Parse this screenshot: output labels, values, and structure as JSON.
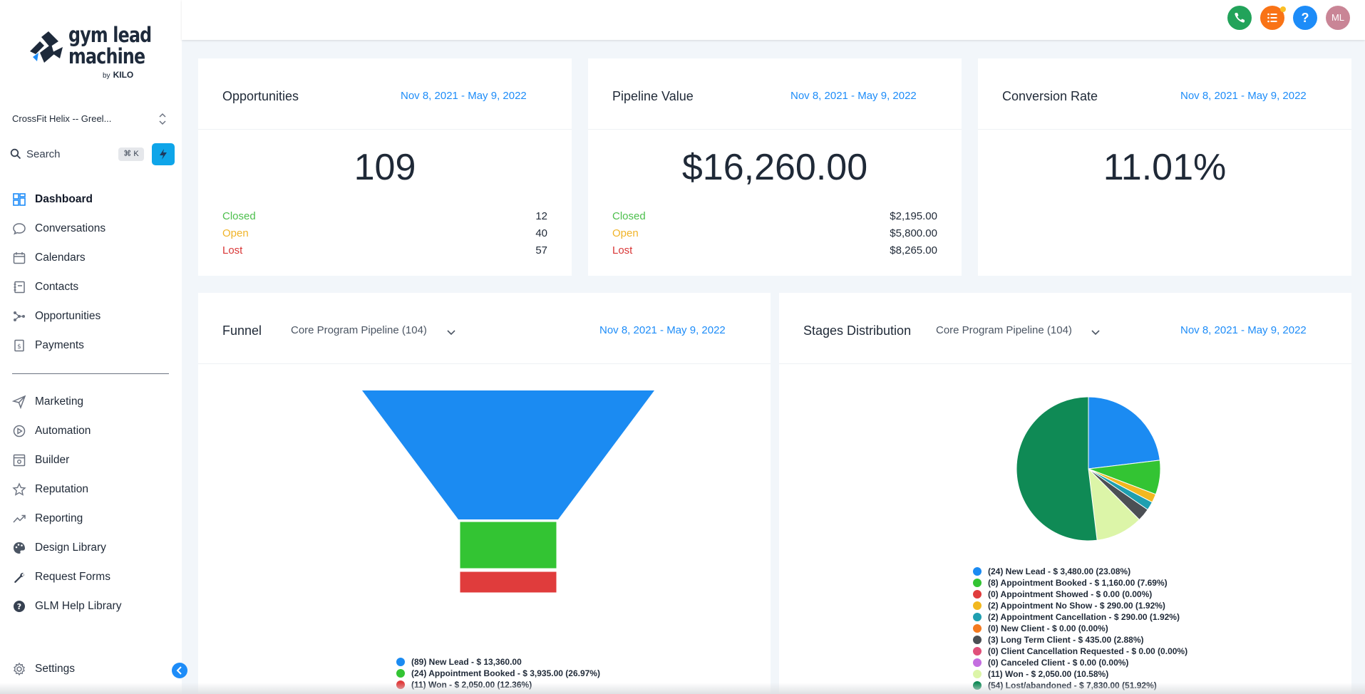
{
  "logo": {
    "line1": "gym lead",
    "line2": "machine",
    "by": "by",
    "brand": "KILO"
  },
  "location": "CrossFit Helix -- Greel...",
  "search": {
    "label": "Search",
    "shortcut": "⌘ K"
  },
  "nav": {
    "items": [
      {
        "label": "Dashboard",
        "icon": "dashboard-icon",
        "active": true
      },
      {
        "label": "Conversations",
        "icon": "chat-icon"
      },
      {
        "label": "Calendars",
        "icon": "calendar-icon"
      },
      {
        "label": "Contacts",
        "icon": "contacts-icon"
      },
      {
        "label": "Opportunities",
        "icon": "opportunities-icon"
      },
      {
        "label": "Payments",
        "icon": "payments-icon"
      }
    ],
    "items2": [
      {
        "label": "Marketing",
        "icon": "send-icon"
      },
      {
        "label": "Automation",
        "icon": "automation-icon"
      },
      {
        "label": "Builder",
        "icon": "builder-icon"
      },
      {
        "label": "Reputation",
        "icon": "star-icon"
      },
      {
        "label": "Reporting",
        "icon": "trend-icon"
      },
      {
        "label": "Design Library",
        "icon": "palette-icon"
      },
      {
        "label": "Request Forms",
        "icon": "wrench-icon"
      },
      {
        "label": "GLM Help Library",
        "icon": "help-circle-icon"
      }
    ],
    "settings": "Settings"
  },
  "topbar": {
    "help": "?",
    "avatar": "ML"
  },
  "date_range": "Nov 8, 2021 - May 9, 2022",
  "opportunities": {
    "title": "Opportunities",
    "value": "109",
    "rows": [
      {
        "label": "Closed",
        "value": "12",
        "color": "#4cbf4c"
      },
      {
        "label": "Open",
        "value": "40",
        "color": "#f0b429"
      },
      {
        "label": "Lost",
        "value": "57",
        "color": "#d93636"
      }
    ]
  },
  "pipeline": {
    "title": "Pipeline Value",
    "value": "$16,260.00",
    "rows": [
      {
        "label": "Closed",
        "value": "$2,195.00",
        "color": "#4cbf4c"
      },
      {
        "label": "Open",
        "value": "$5,800.00",
        "color": "#f0b429"
      },
      {
        "label": "Lost",
        "value": "$8,265.00",
        "color": "#d93636"
      }
    ]
  },
  "conversion": {
    "title": "Conversion Rate",
    "value": "11.01%"
  },
  "funnel": {
    "title": "Funnel",
    "pipeline": "Core Program Pipeline (104)",
    "legend": [
      {
        "text": "(89) New Lead - $ 13,360.00",
        "color": "#1b8bf2"
      },
      {
        "text": "(24) Appointment Booked - $ 3,935.00 (26.97%)",
        "color": "#33c433"
      },
      {
        "text": "(11) Won - $ 2,050.00 (12.36%)",
        "color": "#e03c3c"
      }
    ]
  },
  "stages": {
    "title": "Stages Distribution",
    "pipeline": "Core Program Pipeline (104)",
    "legend": [
      {
        "text": "(24) New Lead - $ 3,480.00 (23.08%)",
        "color": "#1b8bf2"
      },
      {
        "text": "(8) Appointment Booked - $ 1,160.00 (7.69%)",
        "color": "#33c433"
      },
      {
        "text": "(0) Appointment Showed - $ 0.00 (0.00%)",
        "color": "#e03c3c"
      },
      {
        "text": "(2) Appointment No Show - $ 290.00 (1.92%)",
        "color": "#f2b81f"
      },
      {
        "text": "(2) Appointment Cancellation - $ 290.00 (1.92%)",
        "color": "#1f9fb0"
      },
      {
        "text": "(0) New Client - $ 0.00 (0.00%)",
        "color": "#f47a1f"
      },
      {
        "text": "(3) Long Term Client - $ 435.00 (2.88%)",
        "color": "#4b4f54"
      },
      {
        "text": "(0) Client Cancellation Requested - $ 0.00 (0.00%)",
        "color": "#e0507a"
      },
      {
        "text": "(0) Canceled Client - $ 0.00 (0.00%)",
        "color": "#c46ee0"
      },
      {
        "text": "(11) Won - $ 2,050.00 (10.58%)",
        "color": "#dcf5a8"
      },
      {
        "text": "(54) Lost/abandoned - $ 7,830.00 (51.92%)",
        "color": "#0f8a55"
      }
    ]
  },
  "chart_data": [
    {
      "type": "funnel",
      "categories": [
        "New Lead",
        "Appointment Booked",
        "Won"
      ],
      "values": [
        89,
        24,
        11
      ]
    },
    {
      "type": "pie",
      "categories": [
        "New Lead",
        "Appointment Booked",
        "Appointment Showed",
        "Appointment No Show",
        "Appointment Cancellation",
        "New Client",
        "Long Term Client",
        "Client Cancellation Requested",
        "Canceled Client",
        "Won",
        "Lost/abandoned"
      ],
      "values": [
        23.08,
        7.69,
        0,
        1.92,
        1.92,
        0,
        2.88,
        0,
        0,
        10.58,
        51.92
      ],
      "colors": [
        "#1b8bf2",
        "#33c433",
        "#e03c3c",
        "#f2b81f",
        "#1f9fb0",
        "#f47a1f",
        "#4b4f54",
        "#e0507a",
        "#c46ee0",
        "#dcf5a8",
        "#0f8a55"
      ]
    }
  ]
}
